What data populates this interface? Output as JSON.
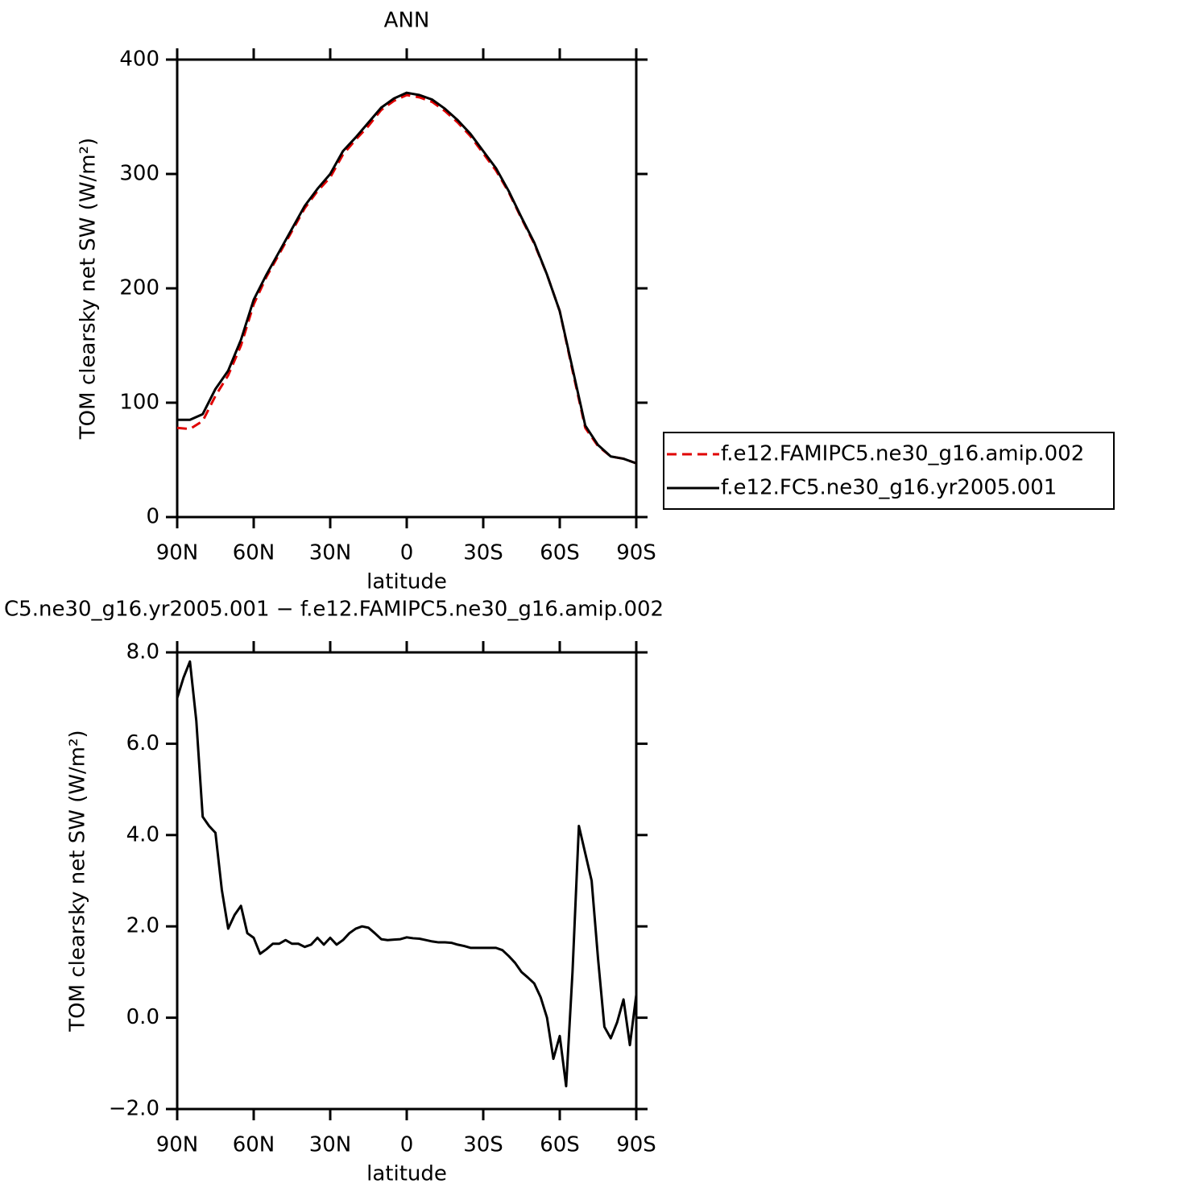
{
  "chart_data": [
    {
      "type": "line",
      "title": "ANN",
      "xlabel": "latitude",
      "ylabel": "TOM clearsky net SW (W/m²)",
      "x": [
        90,
        85,
        80,
        75,
        70,
        65,
        60,
        55,
        50,
        45,
        40,
        35,
        30,
        25,
        20,
        15,
        10,
        5,
        0,
        -5,
        -10,
        -15,
        -20,
        -25,
        -30,
        -35,
        -40,
        -45,
        -50,
        -55,
        -60,
        -65,
        -70,
        -75,
        -80,
        -85,
        -90
      ],
      "series": [
        {
          "name": "f.e12.FAMIPC5.ne30_g16.amip.002",
          "color": "#e00000",
          "dash": true,
          "values": [
            78,
            77,
            84,
            106,
            124,
            150,
            186,
            210,
            230,
            250,
            270,
            285,
            297,
            317,
            330,
            342,
            356,
            364,
            369,
            367,
            363,
            355,
            345,
            333,
            318,
            303,
            284,
            261,
            239,
            212,
            180,
            128,
            78,
            62,
            53,
            51,
            47
          ]
        },
        {
          "name": "f.e12.FC5.ne30_g16.yr2005.001",
          "color": "#000000",
          "dash": false,
          "values": [
            85,
            85,
            90,
            112,
            128,
            155,
            190,
            212,
            232,
            252,
            272,
            287,
            300,
            320,
            332,
            345,
            358,
            366,
            371,
            369,
            365,
            357,
            347,
            335,
            320,
            305,
            285,
            262,
            240,
            212,
            180,
            130,
            80,
            63,
            53,
            51,
            47
          ]
        }
      ],
      "xlim": [
        90,
        -90
      ],
      "xticks": [
        {
          "value": 90,
          "label": "90N"
        },
        {
          "value": 60,
          "label": "60N"
        },
        {
          "value": 30,
          "label": "30N"
        },
        0,
        {
          "value": -30,
          "label": "30S"
        },
        {
          "value": -60,
          "label": "60S"
        },
        {
          "value": -90,
          "label": "90S"
        }
      ],
      "ylim": [
        0,
        400
      ],
      "yticks": [
        0,
        100,
        200,
        300,
        400
      ],
      "legend": "outside-right"
    },
    {
      "type": "line",
      "title": "C5.ne30_g16.yr2005.001 − f.e12.FAMIPC5.ne30_g16.amip.002",
      "xlabel": "latitude",
      "ylabel": "TOM clearsky net SW (W/m²)",
      "x": [
        90,
        87.5,
        85,
        82.5,
        80,
        77.5,
        75,
        72.5,
        70,
        67.5,
        65,
        62.5,
        60,
        57.5,
        55,
        52.5,
        50,
        47.5,
        45,
        42.5,
        40,
        37.5,
        35,
        32.5,
        30,
        27.5,
        25,
        22.5,
        20,
        17.5,
        15,
        12.5,
        10,
        7.5,
        5,
        2.5,
        0,
        -2.5,
        -5,
        -7.5,
        -10,
        -12.5,
        -15,
        -17.5,
        -20,
        -22.5,
        -25,
        -27.5,
        -30,
        -32.5,
        -35,
        -37.5,
        -40,
        -42.5,
        -45,
        -47.5,
        -50,
        -52.5,
        -55,
        -57.5,
        -60,
        -62.5,
        -65,
        -67.5,
        -70,
        -72.5,
        -75,
        -77.5,
        -80,
        -82.5,
        -85,
        -87.5,
        -90
      ],
      "series": [
        {
          "color": "#000000",
          "dash": false,
          "values": [
            7.0,
            7.45,
            7.8,
            6.5,
            4.4,
            4.2,
            4.05,
            2.8,
            1.95,
            2.25,
            2.45,
            1.85,
            1.75,
            1.4,
            1.5,
            1.62,
            1.62,
            1.7,
            1.62,
            1.62,
            1.55,
            1.6,
            1.75,
            1.6,
            1.75,
            1.6,
            1.7,
            1.85,
            1.95,
            2.0,
            1.97,
            1.85,
            1.72,
            1.7,
            1.71,
            1.72,
            1.76,
            1.74,
            1.73,
            1.7,
            1.67,
            1.65,
            1.65,
            1.64,
            1.6,
            1.57,
            1.53,
            1.53,
            1.53,
            1.53,
            1.53,
            1.48,
            1.35,
            1.2,
            1.0,
            0.88,
            0.75,
            0.45,
            0.0,
            -0.9,
            -0.4,
            -1.5,
            1.0,
            4.2,
            3.6,
            3.0,
            1.3,
            -0.2,
            -0.45,
            -0.1,
            0.4,
            -0.6,
            0.5
          ]
        }
      ],
      "xlim": [
        90,
        -90
      ],
      "xticks": [
        {
          "value": 90,
          "label": "90N"
        },
        {
          "value": 60,
          "label": "60N"
        },
        {
          "value": 30,
          "label": "30N"
        },
        0,
        {
          "value": -30,
          "label": "30S"
        },
        {
          "value": -60,
          "label": "60S"
        },
        {
          "value": -90,
          "label": "90S"
        }
      ],
      "ylim": [
        -2,
        8
      ],
      "yticks": [
        {
          "value": -2,
          "label": "−2.0"
        },
        {
          "value": 0,
          "label": "0.0"
        },
        {
          "value": 2,
          "label": "2.0"
        },
        {
          "value": 4,
          "label": "4.0"
        },
        {
          "value": 6,
          "label": "6.0"
        },
        {
          "value": 8,
          "label": "8.0"
        }
      ]
    }
  ]
}
